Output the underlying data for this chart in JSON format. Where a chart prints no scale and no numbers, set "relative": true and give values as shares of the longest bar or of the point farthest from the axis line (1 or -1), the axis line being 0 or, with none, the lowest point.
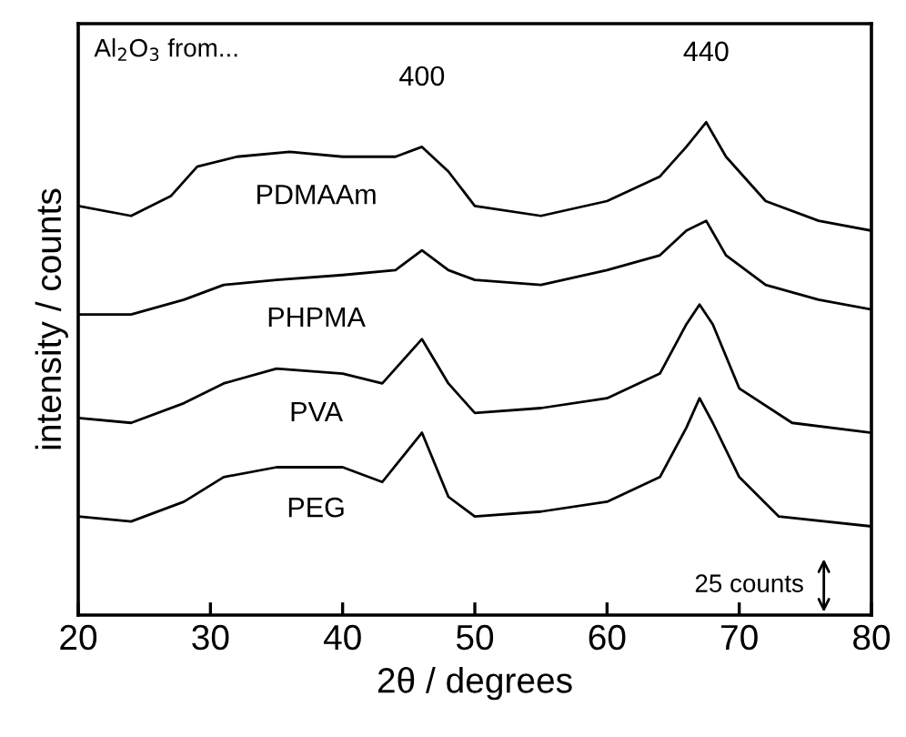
{
  "chart_data": {
    "type": "line",
    "relative": true,
    "xlabel": "2θ / degrees",
    "ylabel": "intensity / counts",
    "xlim": [
      20,
      80
    ],
    "xticks": [
      20,
      30,
      40,
      50,
      60,
      70,
      80
    ],
    "tick_labels": "x",
    "grid": false,
    "legend": false,
    "marker": "none",
    "line_style": "solid",
    "x": [
      20,
      24,
      27,
      29,
      32,
      36,
      40,
      44,
      46,
      48,
      50,
      55,
      60,
      64,
      66,
      67.5,
      69,
      72,
      76,
      80
    ],
    "series": [
      {
        "name": "PDMAAm",
        "color": "#000000",
        "values": [
          0.83,
          0.81,
          0.85,
          0.91,
          0.93,
          0.94,
          0.93,
          0.93,
          0.95,
          0.9,
          0.83,
          0.81,
          0.84,
          0.89,
          0.95,
          1.0,
          0.93,
          0.84,
          0.8,
          0.78
        ]
      },
      {
        "name": "PHPMA",
        "color": "#000000",
        "x": [
          20,
          24,
          28,
          31,
          35,
          40,
          44,
          46,
          48,
          50,
          55,
          60,
          64,
          66,
          67.5,
          69,
          72,
          76,
          80
        ],
        "values": [
          0.61,
          0.61,
          0.64,
          0.67,
          0.68,
          0.69,
          0.7,
          0.74,
          0.7,
          0.68,
          0.67,
          0.7,
          0.73,
          0.78,
          0.8,
          0.73,
          0.67,
          0.64,
          0.62
        ]
      },
      {
        "name": "PVA",
        "color": "#000000",
        "x": [
          20,
          24,
          28,
          31,
          35,
          40,
          43,
          46,
          48,
          50,
          55,
          60,
          64,
          66,
          67,
          68,
          70,
          74,
          80
        ],
        "values": [
          0.4,
          0.39,
          0.43,
          0.47,
          0.5,
          0.49,
          0.47,
          0.56,
          0.47,
          0.41,
          0.42,
          0.44,
          0.49,
          0.59,
          0.63,
          0.59,
          0.46,
          0.39,
          0.37
        ]
      },
      {
        "name": "PEG",
        "color": "#000000",
        "x": [
          20,
          24,
          28,
          31,
          35,
          40,
          43,
          46,
          48,
          50,
          55,
          60,
          64,
          66,
          67,
          68,
          70,
          73,
          80
        ],
        "values": [
          0.2,
          0.19,
          0.23,
          0.28,
          0.3,
          0.3,
          0.27,
          0.37,
          0.24,
          0.2,
          0.21,
          0.23,
          0.28,
          0.38,
          0.44,
          0.39,
          0.28,
          0.2,
          0.18
        ]
      }
    ],
    "annotations": [
      "Al$_{2}$O$_{3}$ from...",
      {
        "text": "400",
        "x": 46,
        "y": 0.95
      },
      {
        "text": "440",
        "x": 67.5,
        "y": 1.0
      },
      "25 counts"
    ]
  }
}
